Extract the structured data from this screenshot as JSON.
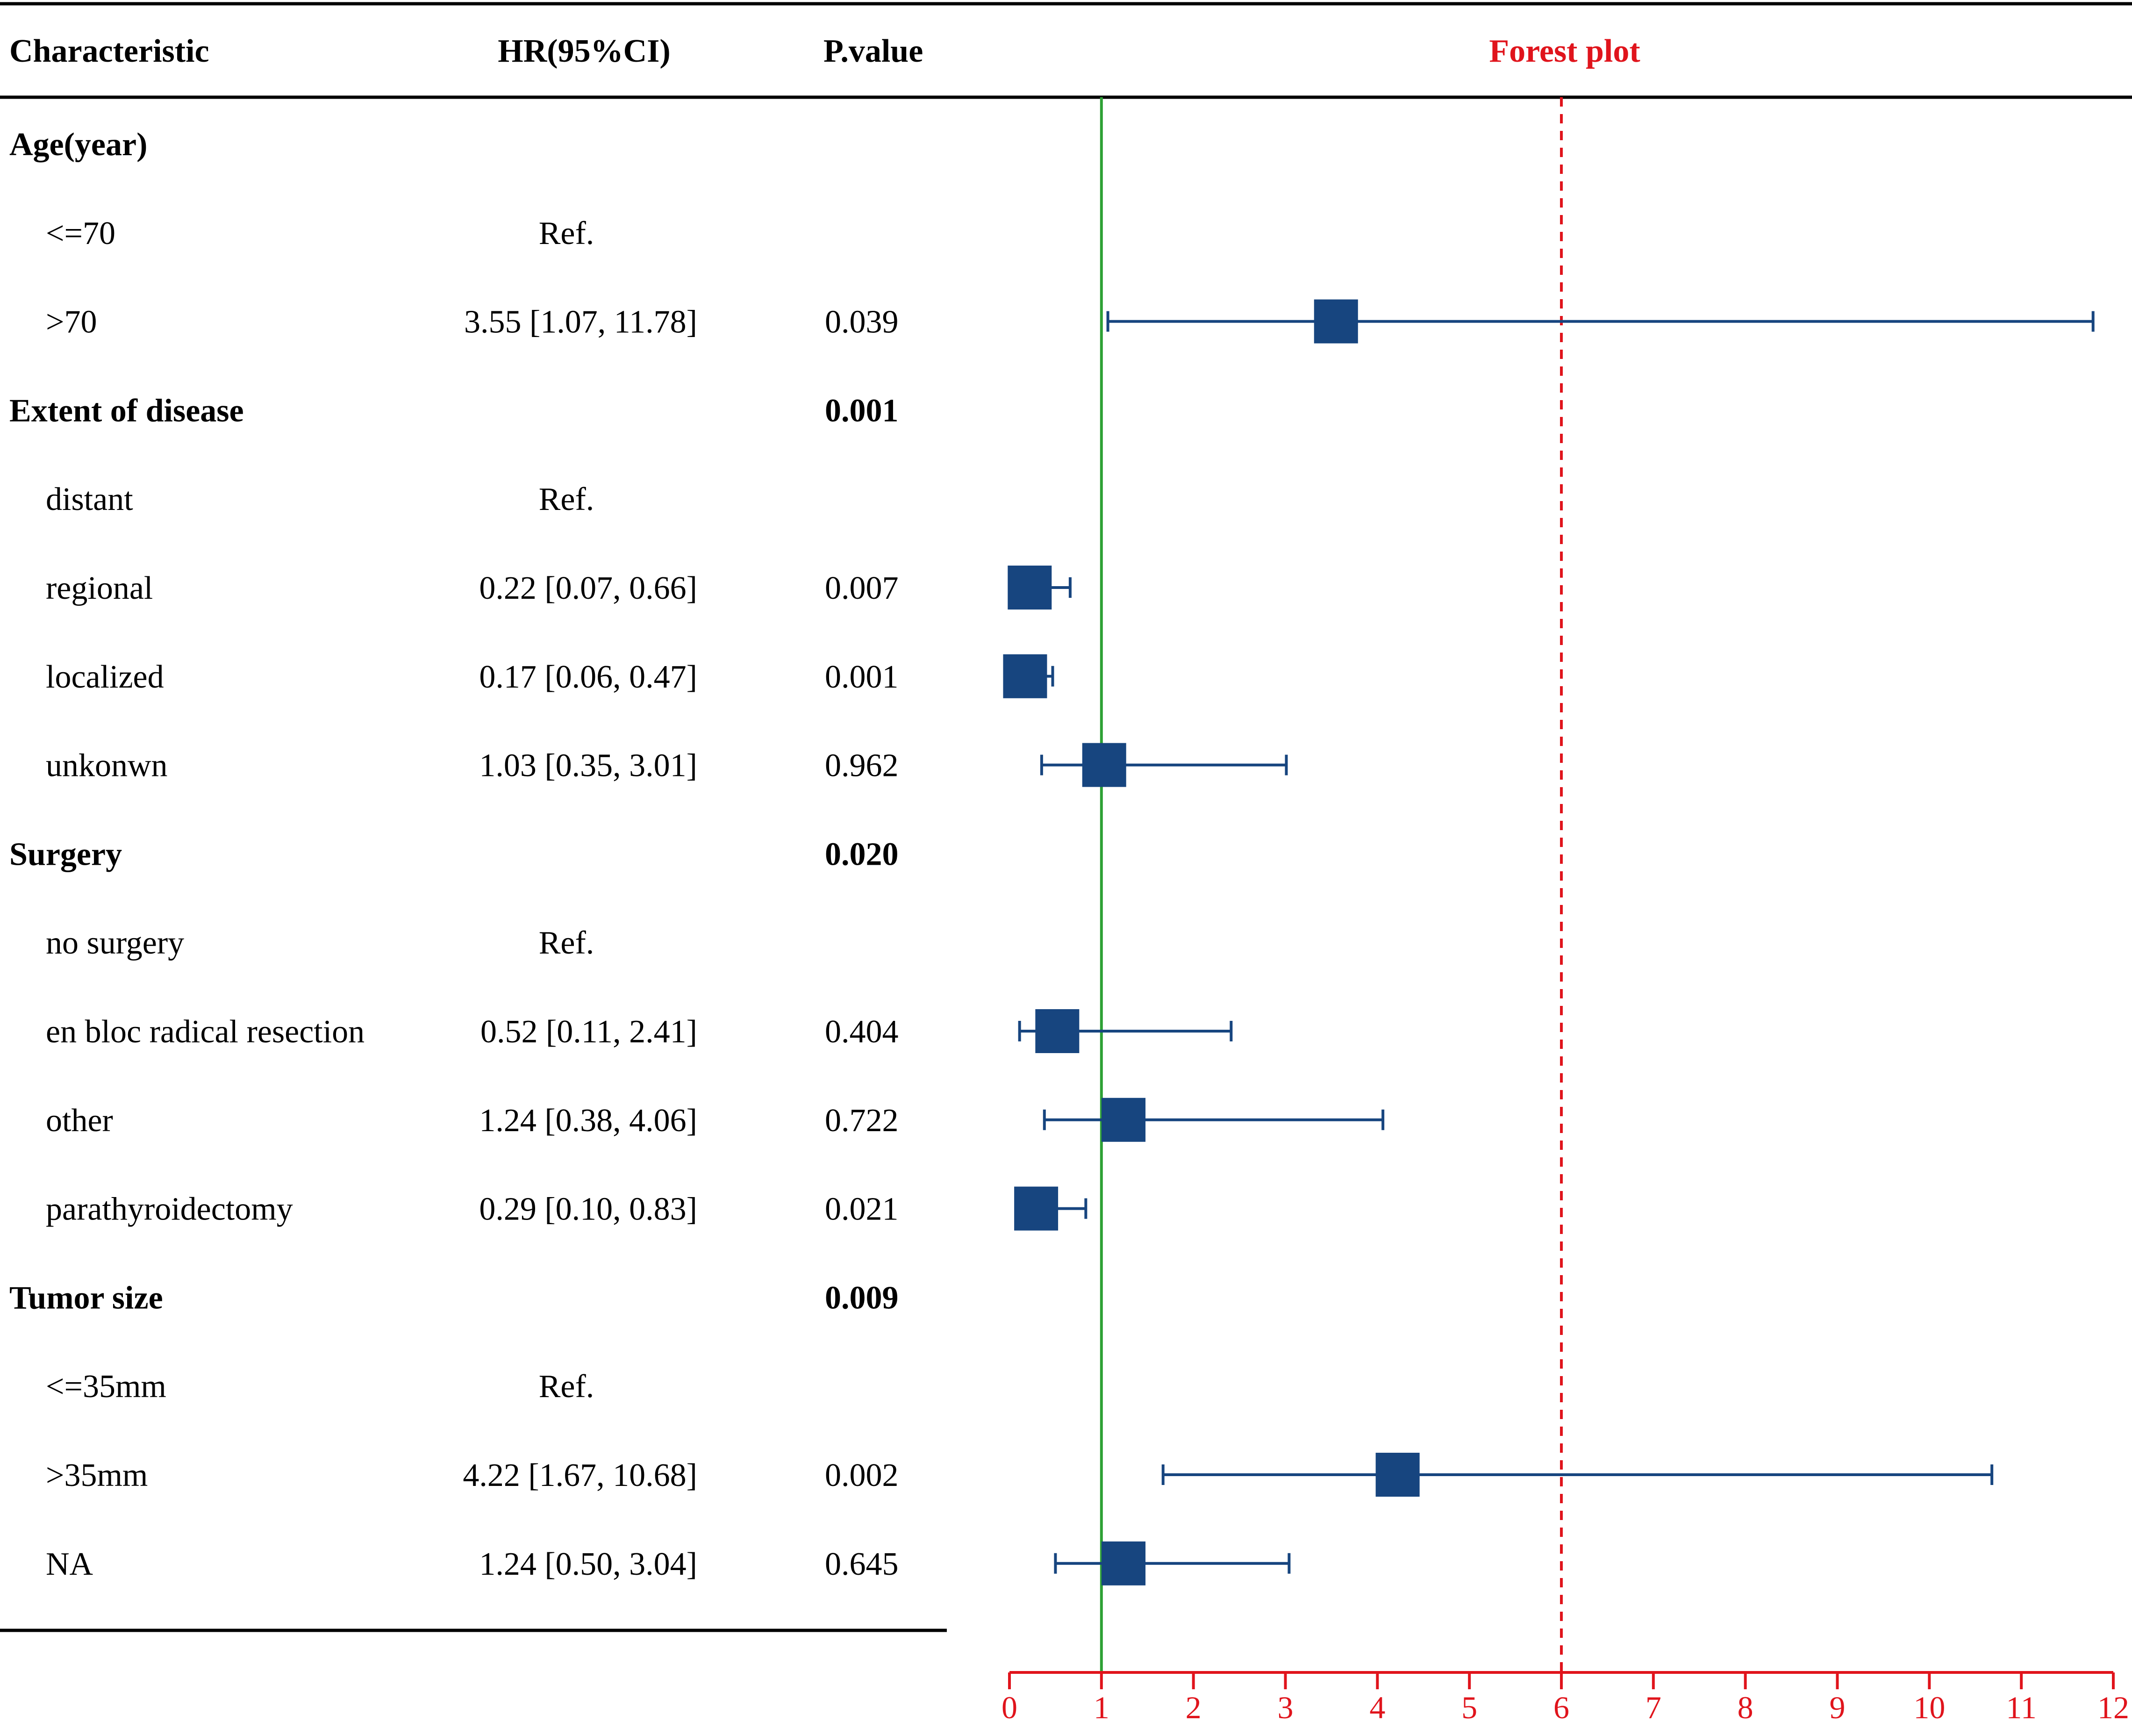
{
  "chart_data": {
    "type": "forest",
    "title": "Forest plot",
    "headers": {
      "characteristic": "Characteristic",
      "hr": "HR(95%CI)",
      "pvalue": "P.value",
      "plot": "Forest plot"
    },
    "x_axis": {
      "xlim": [
        0,
        12
      ],
      "ticks": [
        "0",
        "1",
        "2",
        "3",
        "4",
        "5",
        "6",
        "7",
        "8",
        "9",
        "10",
        "11",
        "12"
      ],
      "reference_line": 1,
      "dashed_line": 6
    },
    "rows": [
      {
        "label": "Age(year)",
        "group": true,
        "hr_text": "",
        "p": ""
      },
      {
        "label": "<=70",
        "group": false,
        "hr_text": "Ref.",
        "p": ""
      },
      {
        "label": ">70",
        "group": false,
        "hr_text": "3.55 [1.07, 11.78]",
        "p": "0.039",
        "hr": 3.55,
        "lo": 1.07,
        "hi": 11.78
      },
      {
        "label": "Extent of disease",
        "group": true,
        "hr_text": "",
        "p": "0.001"
      },
      {
        "label": "distant",
        "group": false,
        "hr_text": "Ref.",
        "p": ""
      },
      {
        "label": "regional",
        "group": false,
        "hr_text": "0.22 [0.07, 0.66]",
        "p": "0.007",
        "hr": 0.22,
        "lo": 0.07,
        "hi": 0.66
      },
      {
        "label": "localized",
        "group": false,
        "hr_text": "0.17 [0.06, 0.47]",
        "p": "0.001",
        "hr": 0.17,
        "lo": 0.06,
        "hi": 0.47
      },
      {
        "label": "unkonwn",
        "group": false,
        "hr_text": "1.03 [0.35, 3.01]",
        "p": "0.962",
        "hr": 1.03,
        "lo": 0.35,
        "hi": 3.01
      },
      {
        "label": "Surgery",
        "group": true,
        "hr_text": "",
        "p": "0.020"
      },
      {
        "label": "no surgery",
        "group": false,
        "hr_text": "Ref.",
        "p": ""
      },
      {
        "label": "en bloc radical resection",
        "group": false,
        "hr_text": "0.52 [0.11, 2.41]",
        "p": "0.404",
        "hr": 0.52,
        "lo": 0.11,
        "hi": 2.41
      },
      {
        "label": "other",
        "group": false,
        "hr_text": "1.24 [0.38, 4.06]",
        "p": "0.722",
        "hr": 1.24,
        "lo": 0.38,
        "hi": 4.06
      },
      {
        "label": "parathyroidectomy",
        "group": false,
        "hr_text": "0.29 [0.10, 0.83]",
        "p": "0.021",
        "hr": 0.29,
        "lo": 0.1,
        "hi": 0.83
      },
      {
        "label": "Tumor size",
        "group": true,
        "hr_text": "",
        "p": "0.009"
      },
      {
        "label": "<=35mm",
        "group": false,
        "hr_text": "Ref.",
        "p": ""
      },
      {
        "label": ">35mm",
        "group": false,
        "hr_text": "4.22 [1.67, 10.68]",
        "p": "0.002",
        "hr": 4.22,
        "lo": 1.67,
        "hi": 10.68
      },
      {
        "label": "NA",
        "group": false,
        "hr_text": "1.24 [0.50, 3.04]",
        "p": "0.645",
        "hr": 1.24,
        "lo": 0.5,
        "hi": 3.04
      }
    ]
  },
  "colors": {
    "marker": "#17457F",
    "reference_line": "#2EA135",
    "axis": "#E0141C",
    "text": "#000000",
    "rule": "#000000"
  }
}
